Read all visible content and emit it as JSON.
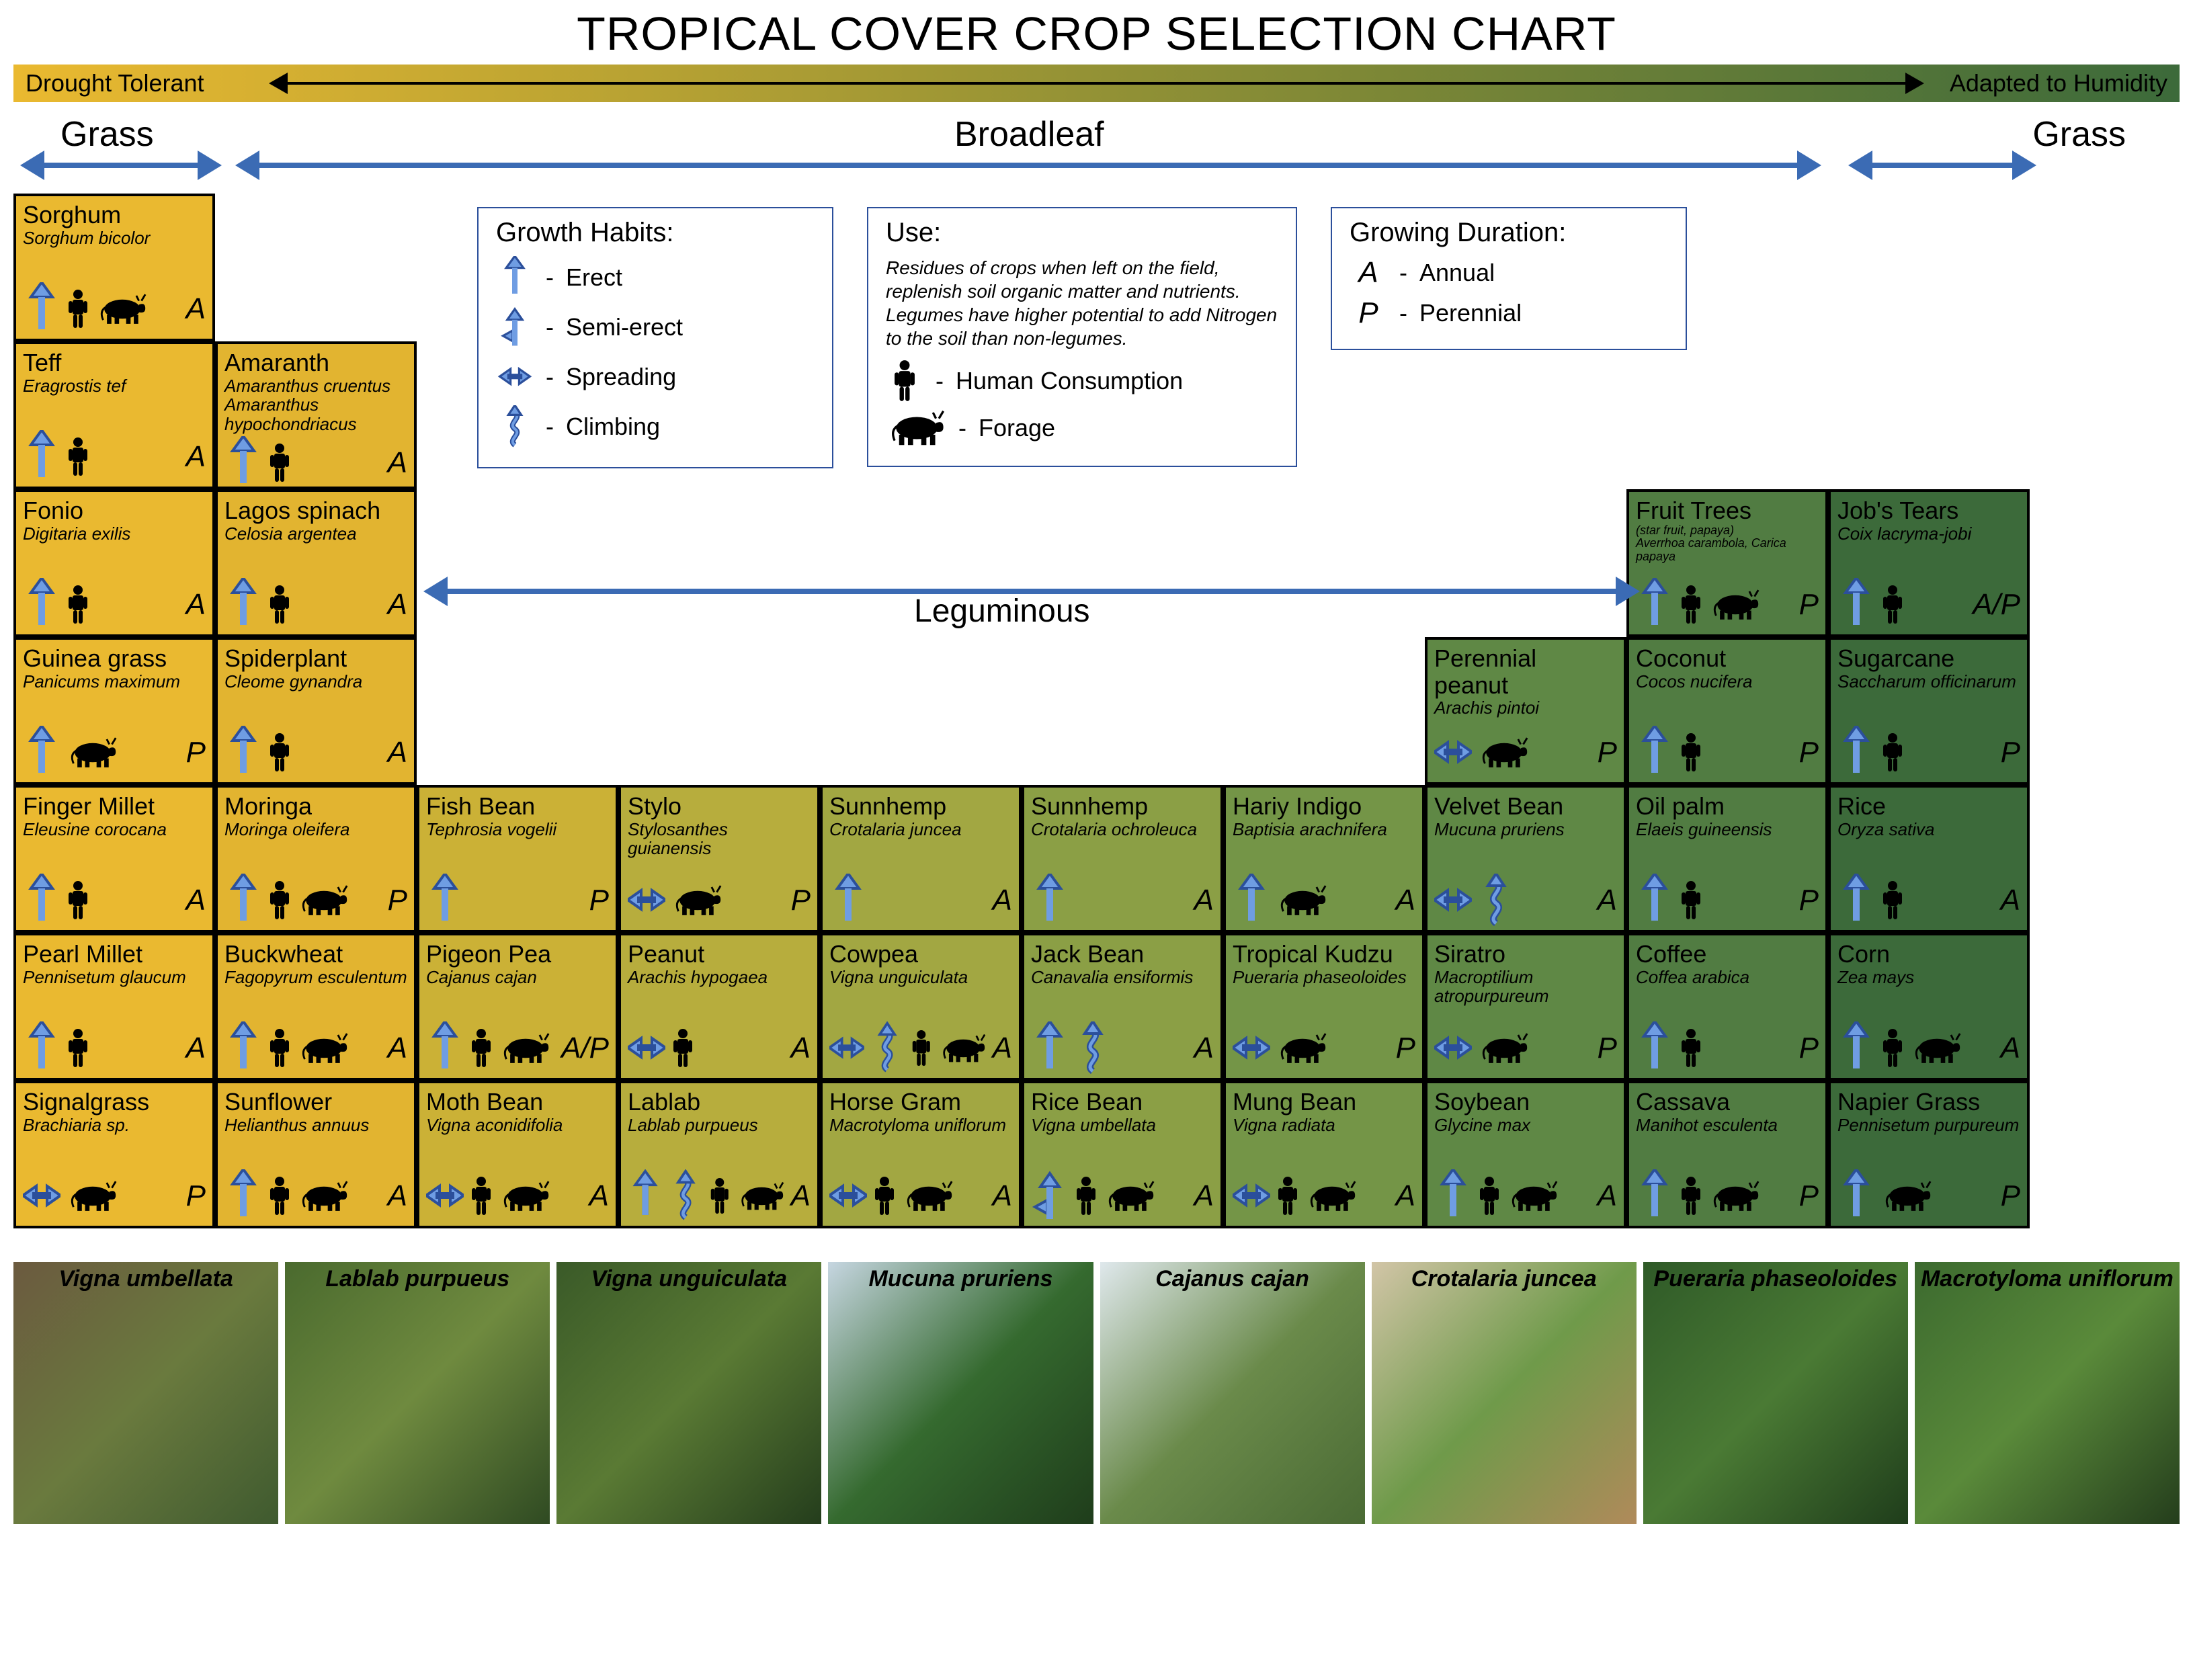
{
  "title": "TROPICAL COVER CROP SELECTION CHART",
  "gradient": {
    "left_label": "Drought Tolerant",
    "right_label": "Adapted to Humidity",
    "left_color": "#eab930",
    "right_color": "#3c6a3a"
  },
  "categories": {
    "grass_left": "Grass",
    "broadleaf": "Broadleaf",
    "grass_right": "Grass",
    "leguminous": "Leguminous"
  },
  "legend_growth": {
    "title": "Growth Habits:",
    "items": [
      {
        "icon": "erect",
        "label": "Erect"
      },
      {
        "icon": "semi-erect",
        "label": "Semi-erect"
      },
      {
        "icon": "spreading",
        "label": "Spreading"
      },
      {
        "icon": "climbing",
        "label": "Climbing"
      }
    ]
  },
  "legend_use": {
    "title": "Use:",
    "note": "Residues of crops when left on the field, replenish soil organic matter and nutrients. Legumes have higher potential to add Nitrogen to the soil than non-legumes.",
    "human_label": "Human Consumption",
    "forage_label": "Forage"
  },
  "legend_duration": {
    "title": "Growing Duration:",
    "items": [
      {
        "code": "A",
        "label": "Annual"
      },
      {
        "code": "P",
        "label": "Perennial"
      }
    ]
  },
  "arrow_colors": {
    "category": "#3b6bb4",
    "stroke": "#2b4f9b"
  },
  "column_hues": [
    "#eab930",
    "#e2b430",
    "#cbb136",
    "#b7ad3d",
    "#a2a742",
    "#8b9f45",
    "#749547",
    "#5f8845",
    "#517c42",
    "#3c6a3a"
  ],
  "cells": [
    {
      "row": 1,
      "col": 1,
      "common": "Sorghum",
      "sci": "Sorghum bicolor",
      "growth": [
        "erect"
      ],
      "human": true,
      "forage": true,
      "dur": "A"
    },
    {
      "row": 2,
      "col": 1,
      "common": "Teff",
      "sci": "Eragrostis tef",
      "growth": [
        "erect"
      ],
      "human": true,
      "forage": false,
      "dur": "A"
    },
    {
      "row": 2,
      "col": 2,
      "common": "Amaranth",
      "sci": "Amaranthus cruentus\nAmaranthus hypochondriacus",
      "growth": [
        "erect"
      ],
      "human": true,
      "forage": false,
      "dur": "A"
    },
    {
      "row": 3,
      "col": 1,
      "common": "Fonio",
      "sci": "Digitaria exilis",
      "growth": [
        "erect"
      ],
      "human": true,
      "forage": false,
      "dur": "A"
    },
    {
      "row": 3,
      "col": 2,
      "common": "Lagos spinach",
      "sci": "Celosia argentea",
      "growth": [
        "erect"
      ],
      "human": true,
      "forage": false,
      "dur": "A"
    },
    {
      "row": 3,
      "col": 9,
      "common": "Fruit Trees",
      "sci": "(star fruit, papaya)\nAverrhoa carambola, Carica papaya",
      "growth": [
        "erect"
      ],
      "human": true,
      "forage": true,
      "dur": "P",
      "sci_small": true
    },
    {
      "row": 3,
      "col": 10,
      "common": "Job's Tears",
      "sci": "Coix lacryma-jobi",
      "growth": [
        "erect"
      ],
      "human": true,
      "forage": false,
      "dur": "A/P"
    },
    {
      "row": 4,
      "col": 1,
      "common": "Guinea grass",
      "sci": "Panicums maximum",
      "growth": [
        "erect"
      ],
      "human": false,
      "forage": true,
      "dur": "P"
    },
    {
      "row": 4,
      "col": 2,
      "common": "Spiderplant",
      "sci": "Cleome gynandra",
      "growth": [
        "erect"
      ],
      "human": true,
      "forage": false,
      "dur": "A"
    },
    {
      "row": 4,
      "col": 8,
      "common": "Perennial peanut",
      "sci": "Arachis pintoi",
      "growth": [
        "spreading"
      ],
      "human": false,
      "forage": true,
      "dur": "P"
    },
    {
      "row": 4,
      "col": 9,
      "common": "Coconut",
      "sci": "Cocos nucifera",
      "growth": [
        "erect"
      ],
      "human": true,
      "forage": false,
      "dur": "P"
    },
    {
      "row": 4,
      "col": 10,
      "common": "Sugarcane",
      "sci": "Saccharum officinarum",
      "growth": [
        "erect"
      ],
      "human": true,
      "forage": false,
      "dur": "P"
    },
    {
      "row": 5,
      "col": 1,
      "common": "Finger Millet",
      "sci": "Eleusine corocana",
      "growth": [
        "erect"
      ],
      "human": true,
      "forage": false,
      "dur": "A"
    },
    {
      "row": 5,
      "col": 2,
      "common": "Moringa",
      "sci": "Moringa oleifera",
      "growth": [
        "erect"
      ],
      "human": true,
      "forage": true,
      "dur": "P"
    },
    {
      "row": 5,
      "col": 3,
      "common": "Fish Bean",
      "sci": "Tephrosia vogelii",
      "growth": [
        "erect"
      ],
      "human": false,
      "forage": false,
      "dur": "P"
    },
    {
      "row": 5,
      "col": 4,
      "common": "Stylo",
      "sci": "Stylosanthes guianensis",
      "growth": [
        "spreading"
      ],
      "human": false,
      "forage": true,
      "dur": "P"
    },
    {
      "row": 5,
      "col": 5,
      "common": "Sunnhemp",
      "sci": "Crotalaria juncea",
      "growth": [
        "erect"
      ],
      "human": false,
      "forage": false,
      "dur": "A"
    },
    {
      "row": 5,
      "col": 6,
      "common": "Sunnhemp",
      "sci": "Crotalaria ochroleuca",
      "growth": [
        "erect"
      ],
      "human": false,
      "forage": false,
      "dur": "A"
    },
    {
      "row": 5,
      "col": 7,
      "common": "Hariy Indigo",
      "sci": "Baptisia arachnifera",
      "growth": [
        "erect"
      ],
      "human": false,
      "forage": true,
      "dur": "A"
    },
    {
      "row": 5,
      "col": 8,
      "common": "Velvet Bean",
      "sci": "Mucuna pruriens",
      "growth": [
        "spreading",
        "climbing"
      ],
      "human": false,
      "forage": false,
      "dur": "A"
    },
    {
      "row": 5,
      "col": 9,
      "common": "Oil palm",
      "sci": "Elaeis guineensis",
      "growth": [
        "erect"
      ],
      "human": true,
      "forage": false,
      "dur": "P"
    },
    {
      "row": 5,
      "col": 10,
      "common": "Rice",
      "sci": "Oryza sativa",
      "growth": [
        "erect"
      ],
      "human": true,
      "forage": false,
      "dur": "A"
    },
    {
      "row": 6,
      "col": 1,
      "common": "Pearl Millet",
      "sci": "Pennisetum glaucum",
      "growth": [
        "erect"
      ],
      "human": true,
      "forage": false,
      "dur": "A"
    },
    {
      "row": 6,
      "col": 2,
      "common": "Buckwheat",
      "sci": "Fagopyrum esculentum",
      "growth": [
        "erect"
      ],
      "human": true,
      "forage": true,
      "dur": "A"
    },
    {
      "row": 6,
      "col": 3,
      "common": "Pigeon Pea",
      "sci": "Cajanus cajan",
      "growth": [
        "erect"
      ],
      "human": true,
      "forage": true,
      "dur": "A/P"
    },
    {
      "row": 6,
      "col": 4,
      "common": "Peanut",
      "sci": "Arachis hypogaea",
      "growth": [
        "spreading"
      ],
      "human": true,
      "forage": false,
      "dur": "A"
    },
    {
      "row": 6,
      "col": 5,
      "common": "Cowpea",
      "sci": "Vigna unguiculata",
      "growth": [
        "spreading",
        "climbing"
      ],
      "human": true,
      "forage": true,
      "dur": "A"
    },
    {
      "row": 6,
      "col": 6,
      "common": "Jack Bean",
      "sci": "Canavalia ensiformis",
      "growth": [
        "erect",
        "climbing"
      ],
      "human": false,
      "forage": false,
      "dur": "A"
    },
    {
      "row": 6,
      "col": 7,
      "common": "Tropical Kudzu",
      "sci": "Pueraria phaseoloides",
      "growth": [
        "spreading"
      ],
      "human": false,
      "forage": true,
      "dur": "P"
    },
    {
      "row": 6,
      "col": 8,
      "common": "Siratro",
      "sci": "Macroptilium atropurpureum",
      "growth": [
        "spreading"
      ],
      "human": false,
      "forage": true,
      "dur": "P"
    },
    {
      "row": 6,
      "col": 9,
      "common": "Coffee",
      "sci": "Coffea arabica",
      "growth": [
        "erect"
      ],
      "human": true,
      "forage": false,
      "dur": "P"
    },
    {
      "row": 6,
      "col": 10,
      "common": "Corn",
      "sci": "Zea mays",
      "growth": [
        "erect"
      ],
      "human": true,
      "forage": true,
      "dur": "A"
    },
    {
      "row": 7,
      "col": 1,
      "common": "Signalgrass",
      "sci": "Brachiaria sp.",
      "growth": [
        "spreading"
      ],
      "human": false,
      "forage": true,
      "dur": "P"
    },
    {
      "row": 7,
      "col": 2,
      "common": "Sunflower",
      "sci": "Helianthus annuus",
      "growth": [
        "erect"
      ],
      "human": true,
      "forage": true,
      "dur": "A"
    },
    {
      "row": 7,
      "col": 3,
      "common": "Moth Bean",
      "sci": "Vigna aconidifolia",
      "growth": [
        "spreading"
      ],
      "human": true,
      "forage": true,
      "dur": "A"
    },
    {
      "row": 7,
      "col": 4,
      "common": "Lablab",
      "sci": "Lablab purpueus",
      "growth": [
        "erect",
        "climbing"
      ],
      "human": true,
      "forage": true,
      "dur": "A"
    },
    {
      "row": 7,
      "col": 5,
      "common": "Horse Gram",
      "sci": "Macrotyloma uniflorum",
      "growth": [
        "spreading"
      ],
      "human": true,
      "forage": true,
      "dur": "A"
    },
    {
      "row": 7,
      "col": 6,
      "common": "Rice Bean",
      "sci": "Vigna umbellata",
      "growth": [
        "semi-erect"
      ],
      "human": true,
      "forage": true,
      "dur": "A"
    },
    {
      "row": 7,
      "col": 7,
      "common": "Mung Bean",
      "sci": "Vigna radiata",
      "growth": [
        "spreading"
      ],
      "human": true,
      "forage": true,
      "dur": "A"
    },
    {
      "row": 7,
      "col": 8,
      "common": "Soybean",
      "sci": "Glycine max",
      "growth": [
        "erect"
      ],
      "human": true,
      "forage": true,
      "dur": "A"
    },
    {
      "row": 7,
      "col": 9,
      "common": "Cassava",
      "sci": "Manihot esculenta",
      "growth": [
        "erect"
      ],
      "human": true,
      "forage": true,
      "dur": "P"
    },
    {
      "row": 7,
      "col": 10,
      "common": "Napier Grass",
      "sci": "Pennisetum purpureum",
      "growth": [
        "erect"
      ],
      "human": false,
      "forage": true,
      "dur": "P"
    }
  ],
  "photos": [
    {
      "label": "Vigna umbellata",
      "colors": [
        "#6b5a3f",
        "#6a7a3e",
        "#3f5a2f"
      ]
    },
    {
      "label": "Lablab purpueus",
      "colors": [
        "#4a6a2e",
        "#6f8a3f",
        "#2f4a22"
      ]
    },
    {
      "label": "Vigna unguiculata",
      "colors": [
        "#3a5a28",
        "#5a7a34",
        "#243d1c"
      ]
    },
    {
      "label": "Mucuna pruriens",
      "colors": [
        "#c6d6e1",
        "#356a2f",
        "#1f3d1b"
      ]
    },
    {
      "label": "Cajanus cajan",
      "colors": [
        "#dfe8ec",
        "#6a8a4a",
        "#4a6a34"
      ]
    },
    {
      "label": "Crotalaria juncea",
      "colors": [
        "#d2c5a7",
        "#6f9a4a",
        "#b08a5a"
      ]
    },
    {
      "label": "Pueraria phaseoloides",
      "colors": [
        "#2f5a28",
        "#4a7a34",
        "#1f3d1b"
      ]
    },
    {
      "label": "Macrotyloma uniflorum",
      "colors": [
        "#3c6a2f",
        "#5a8a3a",
        "#243d1c"
      ]
    }
  ]
}
